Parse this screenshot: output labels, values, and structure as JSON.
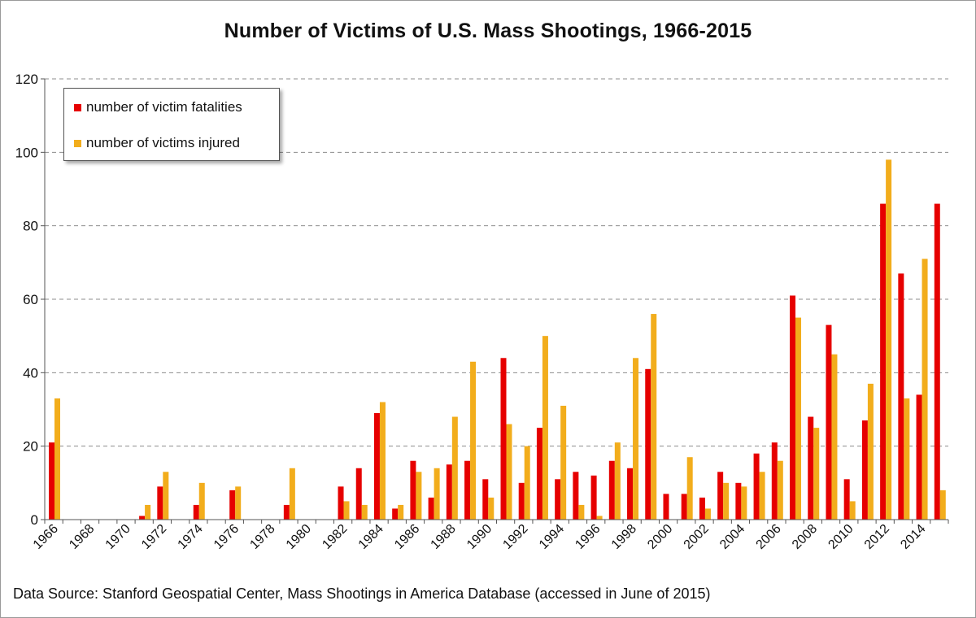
{
  "chart_data": {
    "type": "bar",
    "title": "Number of Victims of U.S. Mass Shootings, 1966-2015",
    "source_note": "Data Source: Stanford Geospatial Center, Mass Shootings in America Database (accessed in June of 2015)",
    "xlabel": "",
    "ylabel": "",
    "ylim": [
      0,
      120
    ],
    "yticks": [
      0,
      20,
      40,
      60,
      80,
      100,
      120
    ],
    "grid": "horizontal dashed",
    "legend_position": "top-left",
    "categories": [
      1966,
      1967,
      1968,
      1969,
      1970,
      1971,
      1972,
      1973,
      1974,
      1975,
      1976,
      1977,
      1978,
      1979,
      1980,
      1981,
      1982,
      1983,
      1984,
      1985,
      1986,
      1987,
      1988,
      1989,
      1990,
      1991,
      1992,
      1993,
      1994,
      1995,
      1996,
      1997,
      1998,
      1999,
      2000,
      2001,
      2002,
      2003,
      2004,
      2005,
      2006,
      2007,
      2008,
      2009,
      2010,
      2011,
      2012,
      2013,
      2014,
      2015
    ],
    "xtick_labels": [
      "1966",
      "1968",
      "1970",
      "1972",
      "1974",
      "1976",
      "1978",
      "1980",
      "1982",
      "1984",
      "1986",
      "1988",
      "1990",
      "1992",
      "1994",
      "1996",
      "1998",
      "2000",
      "2002",
      "2004",
      "2006",
      "2008",
      "2010",
      "2012",
      "2014"
    ],
    "series": [
      {
        "name": "number of victim fatalities",
        "color": "#e60000",
        "values": [
          21,
          0,
          0,
          0,
          0,
          1,
          9,
          0,
          4,
          0,
          8,
          0,
          0,
          4,
          0,
          0,
          9,
          14,
          29,
          3,
          16,
          6,
          15,
          16,
          11,
          44,
          10,
          25,
          11,
          13,
          12,
          16,
          14,
          41,
          7,
          7,
          6,
          13,
          10,
          18,
          21,
          61,
          28,
          53,
          11,
          27,
          86,
          67,
          34,
          86
        ]
      },
      {
        "name": "number of victims injured",
        "color": "#f2ad1c",
        "values": [
          33,
          0,
          0,
          0,
          0,
          4,
          13,
          0,
          10,
          0,
          9,
          0,
          0,
          14,
          0,
          0,
          5,
          4,
          32,
          4,
          13,
          14,
          28,
          43,
          6,
          26,
          20,
          50,
          31,
          4,
          1,
          21,
          44,
          56,
          0,
          17,
          3,
          10,
          9,
          13,
          16,
          55,
          25,
          45,
          5,
          37,
          98,
          33,
          71,
          8
        ]
      }
    ]
  }
}
